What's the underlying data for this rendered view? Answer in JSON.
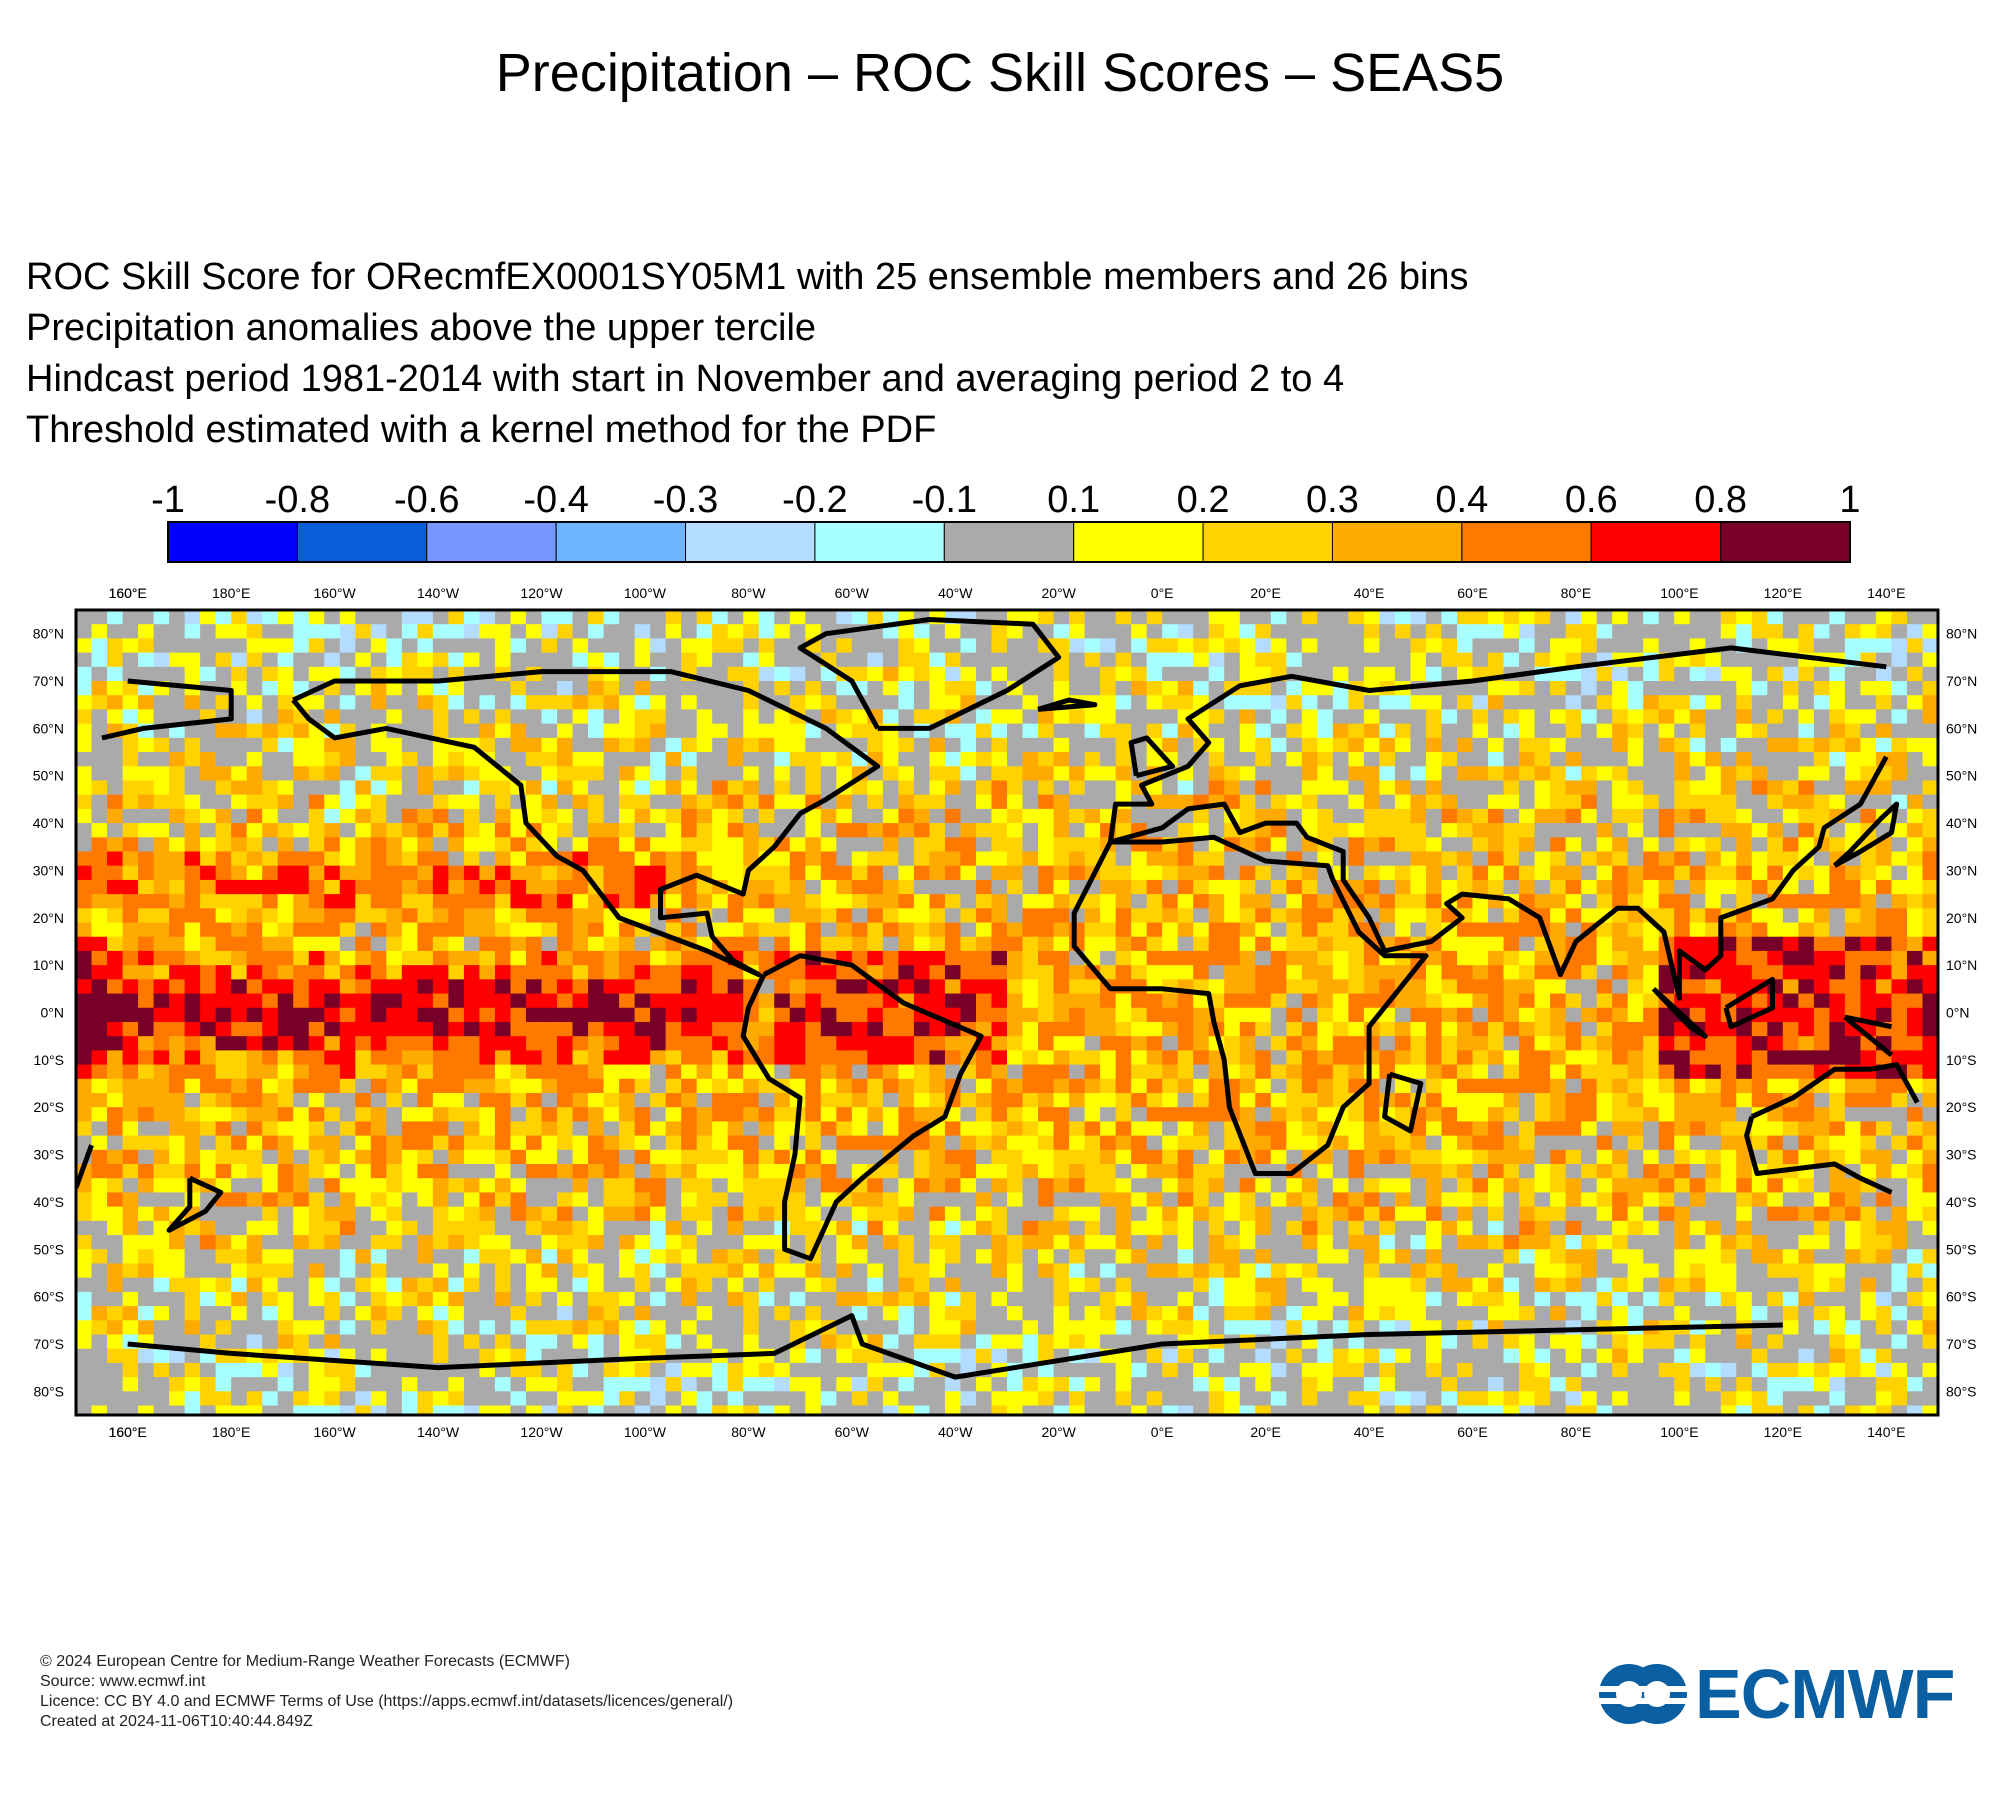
{
  "title": "Precipitation – ROC Skill Scores – SEAS5",
  "subtitle_lines": [
    "ROC Skill Score for ORecmfEX0001SY05M1 with 25 ensemble members and 26 bins",
    "Precipitation anomalies above the upper tercile",
    "Hindcast period 1981-2014 with start in November and averaging period  2 to  4",
    "Threshold estimated with a kernel method for the PDF"
  ],
  "colorbar": {
    "ticks": [
      "-1",
      "-0.8",
      "-0.6",
      "-0.4",
      "-0.3",
      "-0.2",
      "-0.1",
      "0.1",
      "0.2",
      "0.3",
      "0.4",
      "0.6",
      "0.8",
      "1"
    ],
    "colors": [
      "#0000ff",
      "#0a5fd9",
      "#7896ff",
      "#6eb4ff",
      "#b4dcff",
      "#a8ffff",
      "#aaaaaa",
      "#ffff00",
      "#ffd200",
      "#ffaa00",
      "#ff7800",
      "#ff0000",
      "#780028"
    ]
  },
  "map": {
    "lon_labels": [
      "160°E",
      "180°E",
      "160°W",
      "140°W",
      "120°W",
      "100°W",
      "80°W",
      "60°W",
      "40°W",
      "20°W",
      "0°E",
      "20°E",
      "40°E",
      "60°E",
      "80°E",
      "100°E",
      "120°E",
      "140°E",
      "160°E"
    ],
    "lat_labels": [
      "80°N",
      "70°N",
      "60°N",
      "50°N",
      "40°N",
      "30°N",
      "20°N",
      "10°N",
      "0°N",
      "10°S",
      "20°S",
      "30°S",
      "40°S",
      "50°S",
      "60°S",
      "70°S",
      "80°S"
    ],
    "land_color": "#000000",
    "coastline_icon": "coastline-outline"
  },
  "footer": {
    "lines": [
      "© 2024 European Centre for Medium-Range Weather Forecasts (ECMWF)",
      "Source: www.ecmwf.int",
      "Licence: CC BY 4.0 and ECMWF Terms of Use (https://apps.ecmwf.int/datasets/licences/general/)",
      "Created at 2024-11-06T10:40:44.849Z"
    ]
  },
  "logo": {
    "text": "ECMWF",
    "color": "#0a5fa3",
    "icon": "ecmwf-logo-icon"
  }
}
